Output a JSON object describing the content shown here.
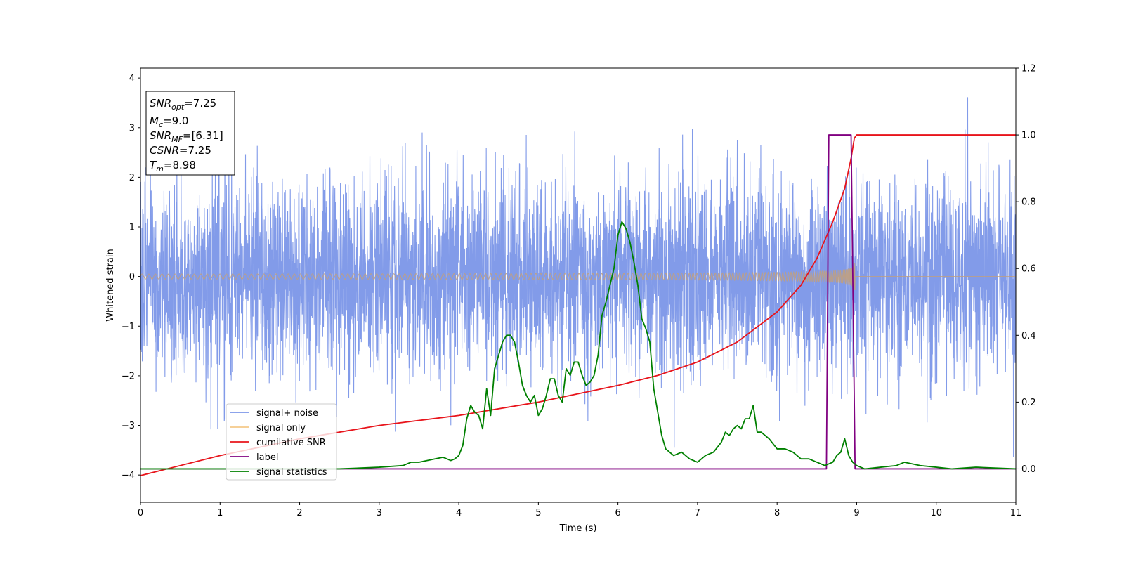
{
  "chart_data": {
    "type": "line",
    "xlabel": "Time (s)",
    "ylabel": "Whitened strain",
    "xlim": [
      0,
      11
    ],
    "ylim": [
      -4.55,
      4.2
    ],
    "ylim_right": [
      -0.1,
      1.2
    ],
    "x_ticks": [
      "0",
      "1",
      "2",
      "3",
      "4",
      "5",
      "6",
      "7",
      "8",
      "9",
      "10",
      "11"
    ],
    "y_ticks": [
      {
        "value": 4,
        "label": "4"
      },
      {
        "value": 3,
        "label": "3"
      },
      {
        "value": 2,
        "label": "2"
      },
      {
        "value": 1,
        "label": "1"
      },
      {
        "value": 0,
        "label": "0"
      },
      {
        "value": -1,
        "label": "−1"
      },
      {
        "value": -2,
        "label": "−2"
      },
      {
        "value": -3,
        "label": "−3"
      },
      {
        "value": -4,
        "label": "−4"
      }
    ],
    "y_ticks_right": [
      {
        "value": 1.2,
        "label": "1.2"
      },
      {
        "value": 1.0,
        "label": "1.0"
      },
      {
        "value": 0.8,
        "label": "0.8"
      },
      {
        "value": 0.6,
        "label": "0.6"
      },
      {
        "value": 0.4,
        "label": "0.4"
      },
      {
        "value": 0.2,
        "label": "0.2"
      },
      {
        "value": 0.0,
        "label": "0.0"
      }
    ],
    "grid": false,
    "legend_position": "lower-left",
    "textbox": {
      "lines": [
        {
          "sym": "SNR",
          "sub": "opt",
          "val": "=7.25"
        },
        {
          "sym": "M",
          "sub": "c",
          "val": "=9.0"
        },
        {
          "sym": "SNR",
          "sub": "MF",
          "val": "=[6.31]"
        },
        {
          "sym": "CSNR",
          "sub": "",
          "val": "=7.25"
        },
        {
          "sym": "T",
          "sub": "m",
          "val": "=8.98"
        }
      ]
    },
    "series": [
      {
        "name": "signal+ noise",
        "color": "#7b96e8",
        "axis": "left",
        "kind": "noise",
        "amplitude_std": 1.0,
        "x_range": [
          0,
          11
        ]
      },
      {
        "name": "signal only",
        "color": "#c0a080",
        "legend_color": "#f5c98a",
        "axis": "left",
        "kind": "chirp",
        "merger_time": 8.98,
        "peak_amplitude": 0.55,
        "x_range": [
          0,
          11
        ]
      },
      {
        "name": "cumilative SNR",
        "color": "#e8141b",
        "axis": "right",
        "x": [
          0,
          1,
          2,
          3,
          4,
          5,
          6,
          6.5,
          7,
          7.5,
          8,
          8.3,
          8.5,
          8.7,
          8.85,
          8.93,
          8.97,
          9.0,
          11
        ],
        "y": [
          -0.02,
          0.04,
          0.09,
          0.13,
          0.16,
          0.2,
          0.25,
          0.28,
          0.32,
          0.38,
          0.47,
          0.55,
          0.63,
          0.74,
          0.84,
          0.93,
          0.99,
          1.0,
          1.0
        ]
      },
      {
        "name": "label",
        "color": "#800080",
        "axis": "right",
        "x": [
          0,
          8.62,
          8.65,
          8.93,
          8.98,
          11
        ],
        "y": [
          0,
          0,
          1,
          1,
          0,
          0
        ]
      },
      {
        "name": "signal statistics",
        "color": "#008000",
        "axis": "right",
        "x": [
          0,
          2.5,
          3.0,
          3.3,
          3.4,
          3.5,
          3.6,
          3.7,
          3.8,
          3.85,
          3.9,
          3.95,
          4.0,
          4.05,
          4.1,
          4.15,
          4.2,
          4.25,
          4.3,
          4.35,
          4.4,
          4.45,
          4.5,
          4.55,
          4.6,
          4.65,
          4.7,
          4.75,
          4.8,
          4.85,
          4.9,
          4.95,
          5.0,
          5.05,
          5.1,
          5.15,
          5.2,
          5.25,
          5.3,
          5.35,
          5.4,
          5.45,
          5.5,
          5.55,
          5.6,
          5.65,
          5.7,
          5.75,
          5.8,
          5.85,
          5.9,
          5.95,
          6.0,
          6.05,
          6.1,
          6.15,
          6.2,
          6.25,
          6.3,
          6.35,
          6.4,
          6.45,
          6.5,
          6.55,
          6.6,
          6.7,
          6.8,
          6.9,
          7.0,
          7.1,
          7.2,
          7.3,
          7.35,
          7.4,
          7.45,
          7.5,
          7.55,
          7.6,
          7.65,
          7.7,
          7.75,
          7.8,
          7.9,
          8.0,
          8.1,
          8.2,
          8.3,
          8.4,
          8.5,
          8.6,
          8.7,
          8.75,
          8.8,
          8.85,
          8.9,
          8.95,
          9.0,
          9.1,
          9.3,
          9.5,
          9.6,
          9.7,
          9.8,
          10.0,
          10.2,
          10.5,
          11.0
        ],
        "y": [
          0.0,
          0.0,
          0.005,
          0.01,
          0.02,
          0.02,
          0.025,
          0.03,
          0.035,
          0.03,
          0.025,
          0.03,
          0.04,
          0.07,
          0.15,
          0.19,
          0.17,
          0.16,
          0.12,
          0.24,
          0.16,
          0.3,
          0.34,
          0.38,
          0.4,
          0.4,
          0.38,
          0.32,
          0.25,
          0.22,
          0.2,
          0.22,
          0.16,
          0.18,
          0.22,
          0.27,
          0.27,
          0.22,
          0.2,
          0.3,
          0.28,
          0.32,
          0.32,
          0.28,
          0.25,
          0.26,
          0.28,
          0.34,
          0.46,
          0.5,
          0.55,
          0.6,
          0.7,
          0.74,
          0.72,
          0.68,
          0.62,
          0.55,
          0.45,
          0.42,
          0.38,
          0.24,
          0.17,
          0.1,
          0.06,
          0.04,
          0.05,
          0.03,
          0.02,
          0.04,
          0.05,
          0.08,
          0.11,
          0.1,
          0.12,
          0.13,
          0.12,
          0.15,
          0.15,
          0.19,
          0.11,
          0.11,
          0.09,
          0.06,
          0.06,
          0.05,
          0.03,
          0.03,
          0.02,
          0.01,
          0.02,
          0.04,
          0.05,
          0.09,
          0.04,
          0.02,
          0.01,
          0.0,
          0.005,
          0.01,
          0.02,
          0.015,
          0.01,
          0.005,
          0.0,
          0.005,
          0.0
        ]
      }
    ]
  }
}
